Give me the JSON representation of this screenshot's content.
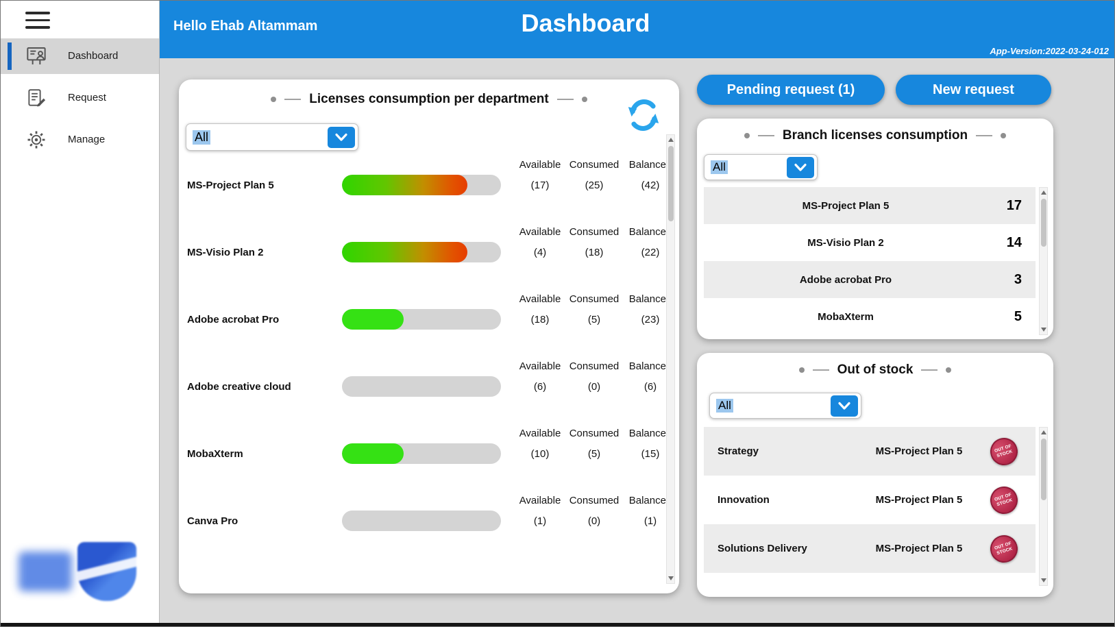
{
  "colors": {
    "accent": "#1787dd",
    "active_indicator": "#1565c0",
    "track": "#d4d4d4",
    "stamp": "#b02446"
  },
  "sidebar": {
    "items": [
      {
        "label": "Dashboard",
        "active": true
      },
      {
        "label": "Request",
        "active": false
      },
      {
        "label": "Manage",
        "active": false
      }
    ]
  },
  "header": {
    "greeting": "Hello Ehab Altammam",
    "title": "Dashboard",
    "app_version": "App-Version:2022-03-24-012"
  },
  "actions": {
    "pending": "Pending request (1)",
    "new_request": "New request"
  },
  "licenses_card": {
    "title": "Licenses consumption per department",
    "filter": "All",
    "columns": {
      "available": "Available",
      "consumed": "Consumed",
      "balanced": "Balanced"
    },
    "items": [
      {
        "name": "MS-Project Plan 5",
        "available": "(17)",
        "consumed": "(25)",
        "balanced": "(42)",
        "pct": 79,
        "fill": "gradient"
      },
      {
        "name": "MS-Visio Plan 2",
        "available": "(4)",
        "consumed": "(18)",
        "balanced": "(22)",
        "pct": 79,
        "fill": "gradient"
      },
      {
        "name": "Adobe acrobat Pro",
        "available": "(18)",
        "consumed": "(5)",
        "balanced": "(23)",
        "pct": 39,
        "fill": "green"
      },
      {
        "name": "Adobe creative cloud",
        "available": "(6)",
        "consumed": "(0)",
        "balanced": "(6)",
        "pct": 0,
        "fill": "none"
      },
      {
        "name": "MobaXterm",
        "available": "(10)",
        "consumed": "(5)",
        "balanced": "(15)",
        "pct": 39,
        "fill": "green"
      },
      {
        "name": "Canva Pro",
        "available": "(1)",
        "consumed": "(0)",
        "balanced": "(1)",
        "pct": 0,
        "fill": "none"
      }
    ]
  },
  "branch_card": {
    "title": "Branch licenses consumption",
    "filter": "All",
    "rows": [
      {
        "name": "MS-Project Plan 5",
        "count": "17"
      },
      {
        "name": "MS-Visio Plan 2",
        "count": "14"
      },
      {
        "name": "Adobe acrobat Pro",
        "count": "3"
      },
      {
        "name": "MobaXterm",
        "count": "5"
      }
    ]
  },
  "oos_card": {
    "title": "Out of stock",
    "filter": "All",
    "stamp": {
      "line1": "OUT OF",
      "line2": "STOCK"
    },
    "rows": [
      {
        "department": "Strategy",
        "license": "MS-Project Plan 5"
      },
      {
        "department": "Innovation",
        "license": "MS-Project Plan 5"
      },
      {
        "department": "Solutions Delivery",
        "license": "MS-Project Plan 5"
      }
    ]
  }
}
